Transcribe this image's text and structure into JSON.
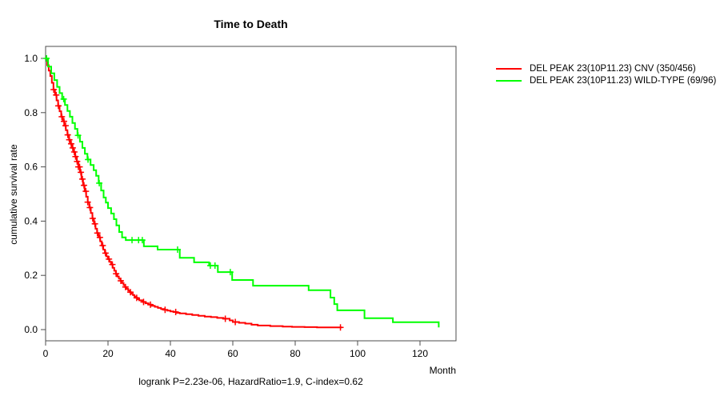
{
  "title": "Time to Death",
  "caption": "logrank P=2.23e-06, HazardRatio=1.9, C-index=0.62",
  "axes": {
    "x_label": "Month",
    "y_label": "cumulative survival rate"
  },
  "legend": {
    "entries": [
      {
        "label": "DEL PEAK 23(10P11.23) CNV (350/456)",
        "color": "#ff0000"
      },
      {
        "label": "DEL PEAK 23(10P11.23) WILD-TYPE (69/96)",
        "color": "#00ff00"
      }
    ]
  },
  "chart_data": {
    "type": "line",
    "subtype": "kaplan-meier-step-function",
    "title": "Time to Death",
    "xlabel": "Month",
    "ylabel": "cumulative survival rate",
    "xlim": [
      0,
      131.5
    ],
    "ylim": [
      0,
      1.0
    ],
    "x_ticks": [
      0,
      20,
      40,
      60,
      80,
      100,
      120
    ],
    "y_ticks": [
      1.0,
      0.8,
      0.6,
      0.4,
      0.2,
      0.0
    ],
    "grid": false,
    "legend_position": "right-outside",
    "annotation": "logrank P=2.23e-06, HazardRatio=1.9, C-index=0.62",
    "series": [
      {
        "name": "DEL PEAK 23(10P11.23) CNV (350/456)",
        "color": "#ff0000",
        "events": "350/456",
        "points": [
          [
            0,
            1.0
          ],
          [
            0.5,
            0.975
          ],
          [
            1,
            0.955
          ],
          [
            1.5,
            0.935
          ],
          [
            2,
            0.91
          ],
          [
            2.5,
            0.885
          ],
          [
            3,
            0.865
          ],
          [
            3.5,
            0.845
          ],
          [
            4,
            0.825
          ],
          [
            4.5,
            0.805
          ],
          [
            5,
            0.785
          ],
          [
            5.5,
            0.768
          ],
          [
            6,
            0.752
          ],
          [
            6.5,
            0.735
          ],
          [
            7,
            0.718
          ],
          [
            7.5,
            0.7
          ],
          [
            8,
            0.685
          ],
          [
            8.5,
            0.67
          ],
          [
            9,
            0.655
          ],
          [
            9.5,
            0.638
          ],
          [
            10,
            0.62
          ],
          [
            10.5,
            0.6
          ],
          [
            11,
            0.58
          ],
          [
            11.5,
            0.555
          ],
          [
            12,
            0.532
          ],
          [
            12.5,
            0.51
          ],
          [
            13,
            0.49
          ],
          [
            13.5,
            0.47
          ],
          [
            14,
            0.45
          ],
          [
            14.5,
            0.43
          ],
          [
            15,
            0.41
          ],
          [
            15.5,
            0.39
          ],
          [
            16,
            0.372
          ],
          [
            16.5,
            0.356
          ],
          [
            17,
            0.34
          ],
          [
            17.5,
            0.325
          ],
          [
            18,
            0.31
          ],
          [
            18.5,
            0.295
          ],
          [
            19,
            0.282
          ],
          [
            19.5,
            0.27
          ],
          [
            20,
            0.26
          ],
          [
            20.5,
            0.25
          ],
          [
            21,
            0.24
          ],
          [
            21.5,
            0.228
          ],
          [
            22,
            0.217
          ],
          [
            22.5,
            0.206
          ],
          [
            23,
            0.196
          ],
          [
            23.5,
            0.188
          ],
          [
            24,
            0.18
          ],
          [
            24.5,
            0.172
          ],
          [
            25,
            0.164
          ],
          [
            25.5,
            0.157
          ],
          [
            26,
            0.15
          ],
          [
            26.5,
            0.144
          ],
          [
            27,
            0.138
          ],
          [
            27.5,
            0.132
          ],
          [
            28,
            0.127
          ],
          [
            28.5,
            0.122
          ],
          [
            29,
            0.117
          ],
          [
            29.5,
            0.112
          ],
          [
            30,
            0.108
          ],
          [
            31,
            0.102
          ],
          [
            32,
            0.097
          ],
          [
            33,
            0.092
          ],
          [
            34,
            0.088
          ],
          [
            35,
            0.084
          ],
          [
            36,
            0.08
          ],
          [
            37,
            0.076
          ],
          [
            38,
            0.073
          ],
          [
            39,
            0.07
          ],
          [
            40,
            0.067
          ],
          [
            41,
            0.065
          ],
          [
            42,
            0.062
          ],
          [
            43,
            0.06
          ],
          [
            45,
            0.057
          ],
          [
            47,
            0.054
          ],
          [
            49,
            0.051
          ],
          [
            51,
            0.048
          ],
          [
            53,
            0.046
          ],
          [
            55,
            0.043
          ],
          [
            57,
            0.04
          ],
          [
            59,
            0.034
          ],
          [
            60,
            0.028
          ],
          [
            62,
            0.025
          ],
          [
            64,
            0.022
          ],
          [
            66,
            0.018
          ],
          [
            68,
            0.015
          ],
          [
            72,
            0.013
          ],
          [
            76,
            0.011
          ],
          [
            79,
            0.01
          ],
          [
            83,
            0.009
          ],
          [
            87,
            0.008
          ],
          [
            95,
            0.008
          ]
        ],
        "censor_months": [
          2.6,
          3.4,
          4.1,
          5.2,
          5.9,
          6.4,
          7.1,
          7.6,
          8.2,
          8.7,
          9.2,
          9.6,
          10.1,
          10.5,
          10.9,
          11.3,
          11.8,
          12.3,
          12.9,
          13.5,
          14.2,
          15.1,
          15.8,
          16.6,
          17.4,
          18.3,
          19.2,
          20.3,
          21.4,
          22.6,
          24.1,
          25.6,
          27.2,
          29.2,
          31.4,
          33.6,
          38.3,
          41.7,
          57.6,
          60.8,
          94.5
        ]
      },
      {
        "name": "DEL PEAK 23(10P11.23) WILD-TYPE (69/96)",
        "color": "#00ff00",
        "events": "69/96",
        "points": [
          [
            0,
            1.0
          ],
          [
            0.8,
            0.97
          ],
          [
            1.8,
            0.945
          ],
          [
            2.8,
            0.92
          ],
          [
            3.7,
            0.895
          ],
          [
            4.5,
            0.872
          ],
          [
            5.3,
            0.85
          ],
          [
            6.2,
            0.828
          ],
          [
            7,
            0.806
          ],
          [
            7.8,
            0.785
          ],
          [
            8.6,
            0.762
          ],
          [
            9.4,
            0.74
          ],
          [
            10.2,
            0.716
          ],
          [
            11,
            0.693
          ],
          [
            11.8,
            0.67
          ],
          [
            12.6,
            0.648
          ],
          [
            13.4,
            0.627
          ],
          [
            14.4,
            0.607
          ],
          [
            15.4,
            0.588
          ],
          [
            16.2,
            0.567
          ],
          [
            17,
            0.54
          ],
          [
            17.8,
            0.513
          ],
          [
            18.6,
            0.487
          ],
          [
            19.3,
            0.468
          ],
          [
            20,
            0.448
          ],
          [
            21,
            0.428
          ],
          [
            21.9,
            0.407
          ],
          [
            22.7,
            0.384
          ],
          [
            23.6,
            0.36
          ],
          [
            24.5,
            0.34
          ],
          [
            25.7,
            0.33
          ],
          [
            31.5,
            0.307
          ],
          [
            35.9,
            0.295
          ],
          [
            43,
            0.265
          ],
          [
            47.6,
            0.248
          ],
          [
            52.4,
            0.236
          ],
          [
            55.2,
            0.212
          ],
          [
            59.8,
            0.183
          ],
          [
            66.5,
            0.162
          ],
          [
            84.3,
            0.145
          ],
          [
            91.3,
            0.118
          ],
          [
            92.5,
            0.094
          ],
          [
            93.5,
            0.071
          ],
          [
            102.2,
            0.042
          ],
          [
            111.3,
            0.027
          ],
          [
            126,
            0.008
          ]
        ],
        "censor_months": [
          0.3,
          5.8,
          10.4,
          13.6,
          17.2,
          27.7,
          29.8,
          31.0,
          42.3,
          52.8,
          54.3,
          59.2
        ]
      }
    ]
  },
  "colors": {
    "axis": "#4d4d4d",
    "text": "#000000"
  }
}
